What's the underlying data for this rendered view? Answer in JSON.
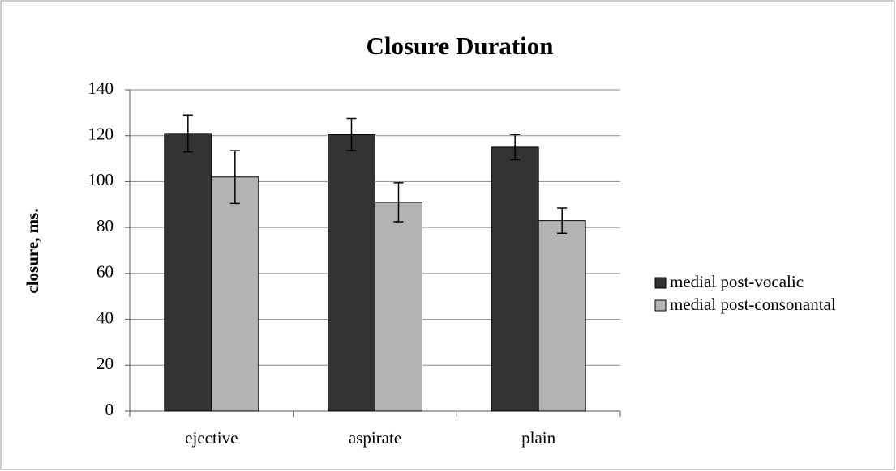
{
  "chart_data": {
    "type": "bar",
    "title": "Closure Duration",
    "y_label": "closure, ms.",
    "categories": [
      "ejective",
      "aspirate",
      "plain"
    ],
    "series": [
      {
        "name": "medial post-vocalic",
        "color": "#333333",
        "values": [
          121,
          120.5,
          115
        ],
        "errors": [
          8,
          7,
          5.5
        ]
      },
      {
        "name": "medial post-consonantal",
        "color": "#b3b3b3",
        "values": [
          102,
          91,
          83
        ],
        "errors": [
          11.5,
          8.5,
          5.5
        ]
      }
    ],
    "ylim": [
      0,
      140
    ],
    "yticks": [
      0,
      20,
      40,
      60,
      80,
      100,
      120,
      140
    ],
    "grid": true,
    "legend": "right"
  }
}
